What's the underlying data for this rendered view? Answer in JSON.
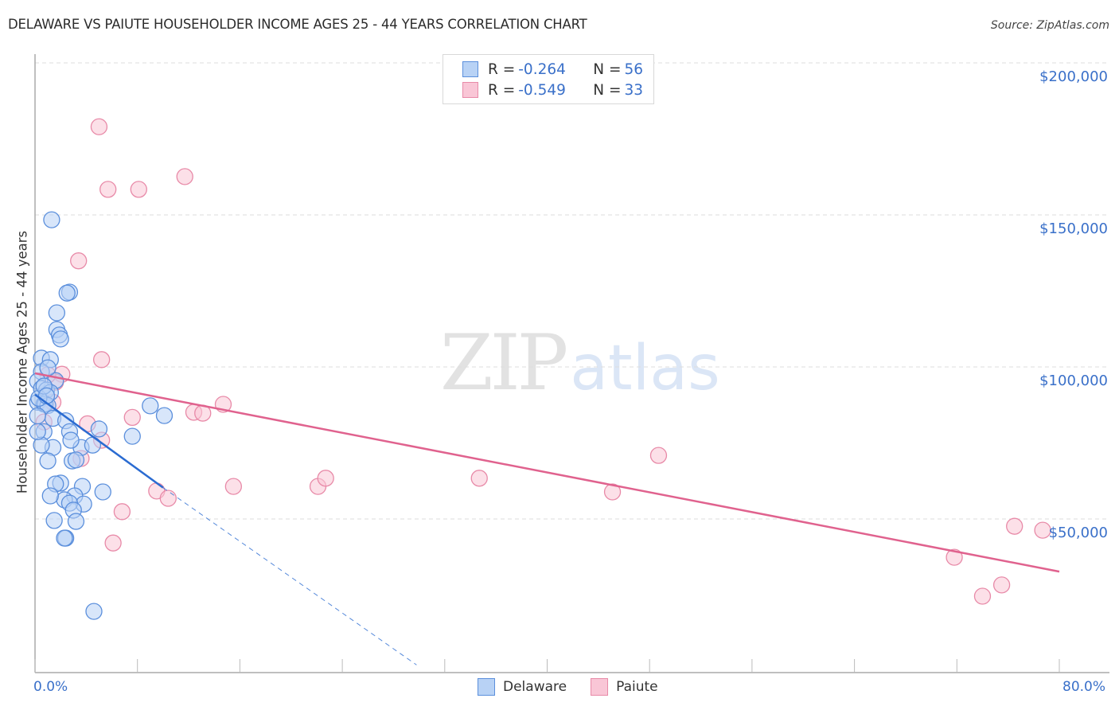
{
  "header": {
    "title": "DELAWARE VS PAIUTE HOUSEHOLDER INCOME AGES 25 - 44 YEARS CORRELATION CHART",
    "source": "Source: ZipAtlas.com"
  },
  "watermark": {
    "zip": "ZIP",
    "atlas": "atlas"
  },
  "legend": {
    "rows": [
      {
        "r_label": "R = ",
        "r_value": "-0.264",
        "n_label": "N = ",
        "n_value": "56"
      },
      {
        "r_label": "R = ",
        "r_value": "-0.549",
        "n_label": "N = ",
        "n_value": "33"
      }
    ]
  },
  "bottom_legend": {
    "series1": "Delaware",
    "series2": "Paiute"
  },
  "axes": {
    "x_min_label": "0.0%",
    "x_max_label": "80.0%",
    "y_title": "Householder Income Ages 25 - 44 years",
    "y_ticks": [
      "$200,000",
      "$150,000",
      "$100,000",
      "$50,000"
    ]
  },
  "colors": {
    "delaware_fill": "#b8d2f5",
    "delaware_stroke": "#5b8fdc",
    "delaware_line": "#2a6bd1",
    "paiute_fill": "#f9c6d6",
    "paiute_stroke": "#e88aa8",
    "paiute_line": "#e0628e",
    "axis_label": "#3a70c9",
    "grid": "#dddddd"
  },
  "chart_data": {
    "type": "scatter",
    "title": "DELAWARE VS PAIUTE HOUSEHOLDER INCOME AGES 25 - 44 YEARS CORRELATION CHART",
    "xlabel": "",
    "ylabel": "Householder Income Ages 25 - 44 years",
    "xlim": [
      0,
      80
    ],
    "ylim": [
      0,
      210000
    ],
    "x_unit": "%",
    "y_ticks": [
      50000,
      100000,
      150000,
      200000
    ],
    "grid": "horizontal dashed",
    "legend_position": "top-center",
    "series": [
      {
        "name": "Delaware",
        "R": -0.264,
        "N": 56,
        "trend": {
          "x0": 0,
          "y0": 90900,
          "x1": 10.0,
          "y1": 60300,
          "dashed_extension_to": [
            29.8,
            2000
          ]
        },
        "points": [
          [
            1.3,
            148400
          ],
          [
            2.7,
            124600
          ],
          [
            2.5,
            124300
          ],
          [
            1.7,
            117800
          ],
          [
            1.7,
            112300
          ],
          [
            1.9,
            110500
          ],
          [
            2.0,
            109200
          ],
          [
            0.5,
            102900
          ],
          [
            1.2,
            102400
          ],
          [
            0.5,
            98400
          ],
          [
            0.2,
            95300
          ],
          [
            1.6,
            95500
          ],
          [
            0.5,
            92900
          ],
          [
            0.9,
            92400
          ],
          [
            1.2,
            91600
          ],
          [
            0.2,
            88400
          ],
          [
            0.7,
            87800
          ],
          [
            0.8,
            87800
          ],
          [
            1.0,
            87300
          ],
          [
            1.4,
            83100
          ],
          [
            2.4,
            82300
          ],
          [
            0.7,
            78700
          ],
          [
            2.7,
            78700
          ],
          [
            1.4,
            73500
          ],
          [
            0.5,
            74300
          ],
          [
            3.6,
            73500
          ],
          [
            4.5,
            74300
          ],
          [
            2.9,
            69100
          ],
          [
            1.0,
            69100
          ],
          [
            3.2,
            69400
          ],
          [
            5.0,
            79600
          ],
          [
            9.0,
            87200
          ],
          [
            10.1,
            84000
          ],
          [
            7.6,
            77200
          ],
          [
            2.0,
            61800
          ],
          [
            1.6,
            61500
          ],
          [
            3.7,
            60700
          ],
          [
            3.1,
            57600
          ],
          [
            2.3,
            56300
          ],
          [
            1.2,
            57600
          ],
          [
            3.8,
            54900
          ],
          [
            5.3,
            58900
          ],
          [
            2.7,
            55200
          ],
          [
            3.0,
            52900
          ],
          [
            3.2,
            49200
          ],
          [
            1.5,
            49500
          ],
          [
            2.4,
            43700
          ],
          [
            2.3,
            43700
          ],
          [
            4.6,
            19600
          ],
          [
            0.2,
            78700
          ],
          [
            0.2,
            83900
          ],
          [
            1.0,
            99700
          ],
          [
            0.3,
            89700
          ],
          [
            0.7,
            93700
          ],
          [
            2.8,
            75900
          ],
          [
            0.9,
            90500
          ]
        ]
      },
      {
        "name": "Paiute",
        "R": -0.549,
        "N": 33,
        "trend": {
          "x0": 0,
          "y0": 97900,
          "x1": 80,
          "y1": 32700
        },
        "points": [
          [
            5.0,
            179000
          ],
          [
            5.7,
            158400
          ],
          [
            8.1,
            158400
          ],
          [
            11.7,
            162600
          ],
          [
            3.4,
            134900
          ],
          [
            5.2,
            102400
          ],
          [
            2.1,
            97600
          ],
          [
            1.4,
            88400
          ],
          [
            4.1,
            81300
          ],
          [
            7.6,
            83400
          ],
          [
            12.4,
            85100
          ],
          [
            13.1,
            84800
          ],
          [
            14.7,
            87700
          ],
          [
            3.6,
            69900
          ],
          [
            5.2,
            75900
          ],
          [
            9.5,
            59200
          ],
          [
            10.4,
            56800
          ],
          [
            6.8,
            52400
          ],
          [
            6.1,
            42100
          ],
          [
            15.5,
            60700
          ],
          [
            22.1,
            60700
          ],
          [
            22.7,
            63400
          ],
          [
            34.7,
            63400
          ],
          [
            45.1,
            58900
          ],
          [
            48.7,
            70900
          ],
          [
            71.8,
            37400
          ],
          [
            76.5,
            47600
          ],
          [
            78.7,
            46300
          ],
          [
            74.0,
            24600
          ],
          [
            75.5,
            28300
          ],
          [
            1.6,
            95000
          ],
          [
            0.7,
            81900
          ],
          [
            1.0,
            97400
          ]
        ]
      }
    ]
  }
}
